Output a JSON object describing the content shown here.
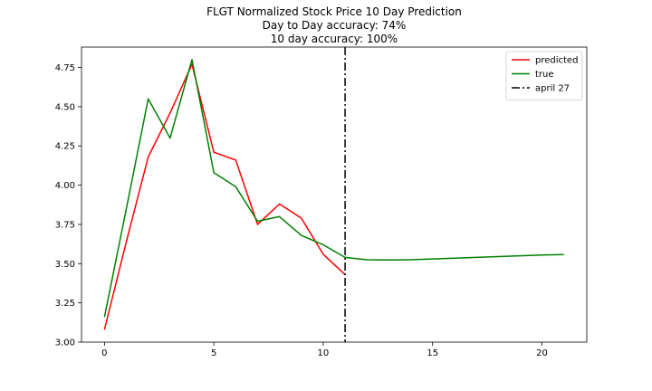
{
  "chart_data": {
    "type": "line",
    "title": [
      "FLGT Normalized Stock Price 10 Day Prediction",
      "Day to Day accuracy: 74%",
      "10 day accuracy: 100%"
    ],
    "xlabel": "",
    "ylabel": "",
    "xlim": [
      -1.05,
      22.05
    ],
    "ylim": [
      3.0,
      4.88
    ],
    "xticks": [
      0,
      5,
      10,
      15,
      20
    ],
    "yticks": [
      3.0,
      3.25,
      3.5,
      3.75,
      4.0,
      4.25,
      4.5,
      4.75
    ],
    "xtick_labels": [
      "0",
      "5",
      "10",
      "15",
      "20"
    ],
    "ytick_labels": [
      "3.00",
      "3.25",
      "3.50",
      "3.75",
      "4.00",
      "4.25",
      "4.50",
      "4.75"
    ],
    "grid": false,
    "legend_position": "top-right",
    "series": [
      {
        "name": "predicted",
        "color": "#ff0000",
        "x": [
          0,
          1,
          2,
          3,
          4,
          5,
          6,
          7,
          8,
          9,
          10,
          11
        ],
        "y": [
          3.08,
          3.64,
          4.18,
          4.46,
          4.77,
          4.21,
          4.16,
          3.75,
          3.88,
          3.79,
          3.56,
          3.43
        ]
      },
      {
        "name": "true",
        "color": "#008000",
        "x": [
          0,
          1,
          2,
          3,
          4,
          5,
          6,
          7,
          8,
          9,
          10,
          11,
          12,
          13,
          14,
          15,
          16,
          17,
          18,
          19,
          20,
          21
        ],
        "y": [
          3.16,
          3.85,
          4.55,
          4.3,
          4.8,
          4.08,
          3.99,
          3.77,
          3.8,
          3.68,
          3.62,
          3.54,
          3.525,
          3.523,
          3.525,
          3.53,
          3.535,
          3.54,
          3.545,
          3.55,
          3.555,
          3.558
        ]
      }
    ],
    "vlines": [
      {
        "name": "april 27",
        "x": 11,
        "color": "#000000",
        "style": "dashdot"
      }
    ]
  }
}
